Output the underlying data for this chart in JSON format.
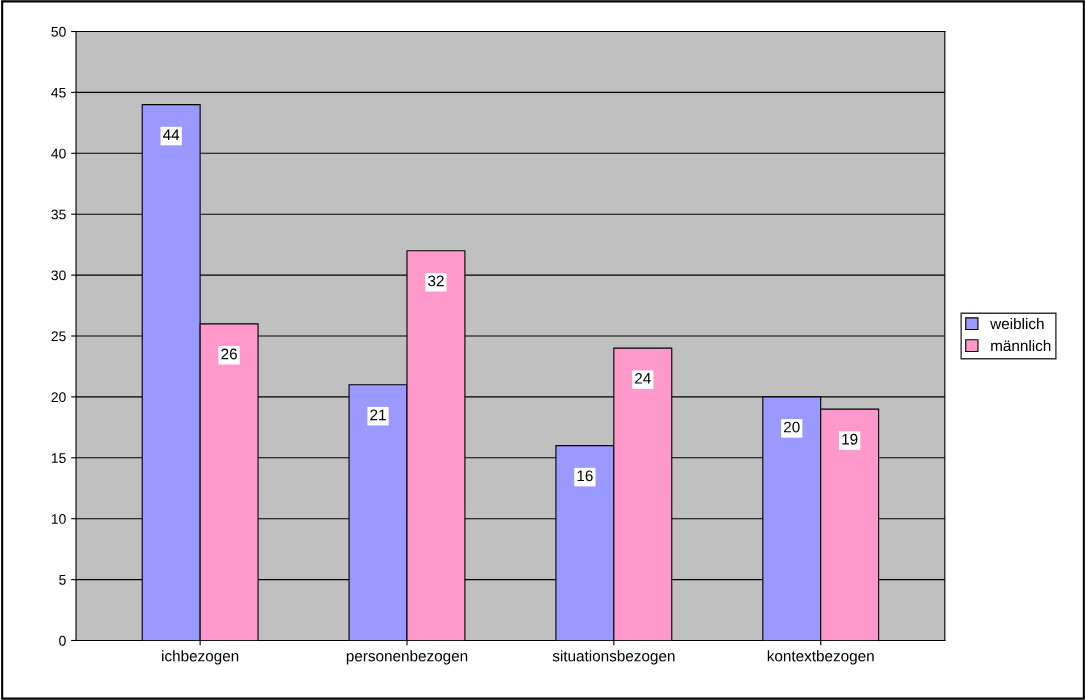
{
  "chart_data": {
    "type": "bar",
    "categories": [
      "ichbezogen",
      "personenbezogen",
      "situationsbezogen",
      "kontextbezogen"
    ],
    "series": [
      {
        "name": "weiblich",
        "color": "#9999ff",
        "values": [
          44,
          21,
          16,
          20
        ]
      },
      {
        "name": "männlich",
        "color": "#ff99cc",
        "values": [
          26,
          32,
          24,
          19
        ]
      }
    ],
    "ylim": [
      0,
      50
    ],
    "yticks": [
      0,
      5,
      10,
      15,
      20,
      25,
      30,
      35,
      40,
      45,
      50
    ],
    "grid": "y",
    "legend": "right",
    "data_labels": true
  }
}
